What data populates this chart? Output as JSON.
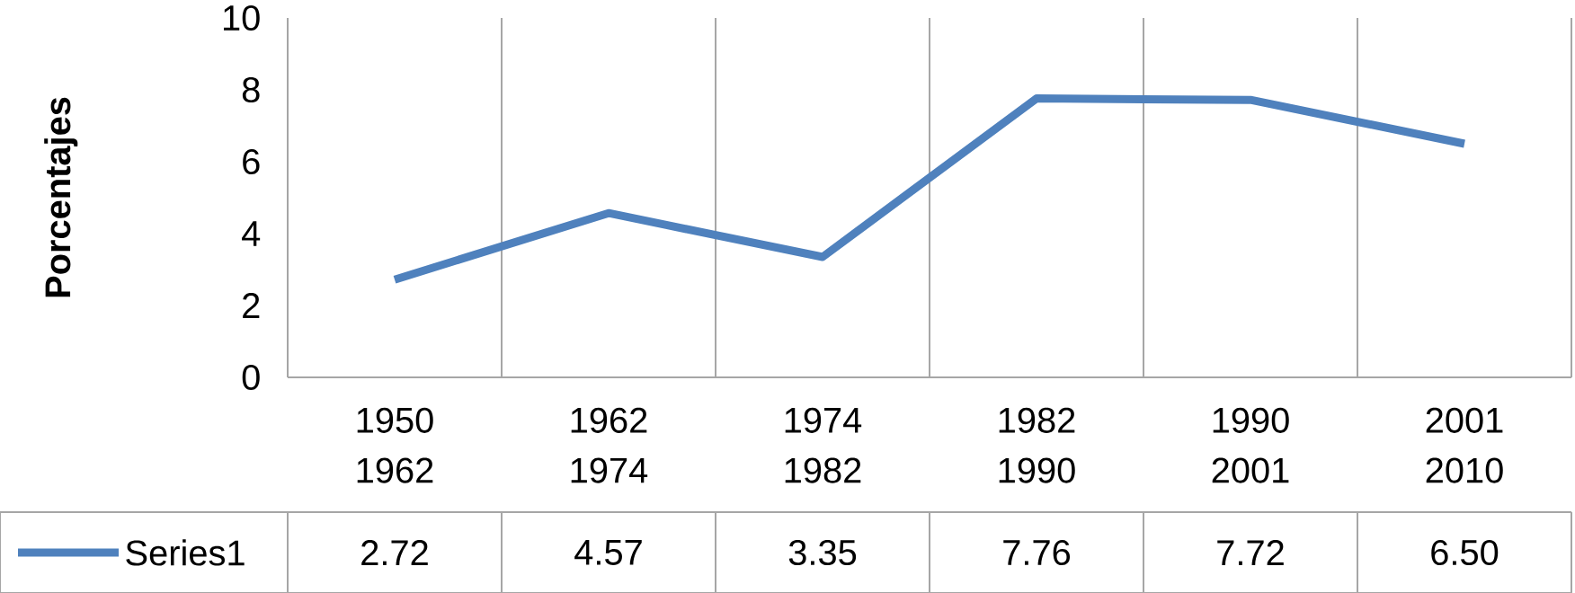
{
  "chart_data": {
    "type": "line",
    "ylabel": "Porcentajes",
    "categories": [
      "1950 1962",
      "1962 1974",
      "1974 1982",
      "1982 1990",
      "1990 2001",
      "2001 2010"
    ],
    "series": [
      {
        "name": "Series1",
        "color": "#4f81bd",
        "values": [
          2.72,
          4.57,
          3.35,
          7.76,
          7.72,
          6.5
        ],
        "value_labels": [
          "2.72",
          "4.57",
          "3.35",
          "7.76",
          "7.72",
          "6.50"
        ]
      }
    ],
    "ylim": [
      0,
      10
    ],
    "yticks": [
      0,
      2,
      4,
      6,
      8,
      10
    ],
    "grid": "x",
    "legend": "bottom left"
  }
}
